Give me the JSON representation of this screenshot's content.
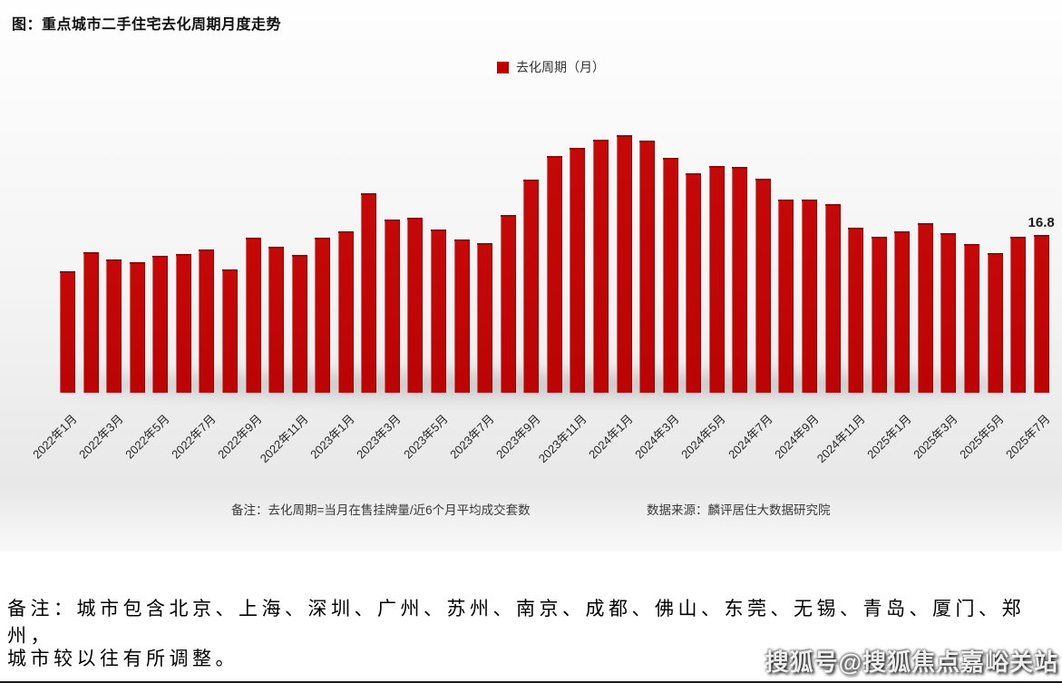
{
  "chart": {
    "title": "图：重点城市二手住宅去化周期月度走势",
    "legend_label": "去化周期（月）",
    "note_definition": "备注：去化周期=当月在售挂牌量/近6个月平均成交套数",
    "note_source": "数据来源：麟评居住大数据研究院",
    "accent_color": "#c00000"
  },
  "chart_data": {
    "type": "bar",
    "title": "重点城市二手住宅去化周期月度走势",
    "series_name": "去化周期（月）",
    "categories": [
      "2022年1月",
      "2022年2月",
      "2022年3月",
      "2022年4月",
      "2022年5月",
      "2022年6月",
      "2022年7月",
      "2022年8月",
      "2022年9月",
      "2022年10月",
      "2022年11月",
      "2022年12月",
      "2023年1月",
      "2023年2月",
      "2023年3月",
      "2023年4月",
      "2023年5月",
      "2023年6月",
      "2023年7月",
      "2023年8月",
      "2023年9月",
      "2023年10月",
      "2023年11月",
      "2023年12月",
      "2024年1月",
      "2024年2月",
      "2024年3月",
      "2024年4月",
      "2024年5月",
      "2024年6月",
      "2024年7月",
      "2024年8月",
      "2024年9月",
      "2024年10月",
      "2024年11月",
      "2024年12月",
      "2025年1月",
      "2025年2月",
      "2025年3月",
      "2025年4月",
      "2025年5月",
      "2025年6月",
      "2025年7月"
    ],
    "values": [
      12.9,
      15.0,
      14.2,
      13.9,
      14.6,
      14.8,
      15.3,
      13.1,
      16.5,
      15.5,
      14.7,
      16.5,
      17.2,
      21.2,
      18.4,
      18.6,
      17.4,
      16.3,
      15.9,
      18.9,
      22.7,
      25.2,
      26.1,
      26.9,
      27.4,
      26.8,
      25.0,
      23.4,
      24.1,
      24.0,
      22.8,
      20.6,
      20.6,
      20.1,
      17.6,
      16.6,
      17.2,
      18.1,
      17.0,
      15.8,
      14.9,
      16.6,
      16.8
    ],
    "x_tick_labels": [
      "2022年1月",
      "2022年3月",
      "2022年5月",
      "2022年7月",
      "2022年9月",
      "2022年11月",
      "2023年1月",
      "2023年3月",
      "2023年5月",
      "2023年7月",
      "2023年9月",
      "2023年11月",
      "2024年1月",
      "2024年3月",
      "2024年5月",
      "2024年7月",
      "2024年9月",
      "2024年11月",
      "2025年1月",
      "2025年3月",
      "2025年5月",
      "2025年7月"
    ],
    "ylim": [
      0,
      28
    ],
    "grid": false,
    "legend_position": "top-center",
    "bar_color": "#c00000",
    "data_label": {
      "index": 42,
      "text": "16.8"
    }
  },
  "bottom_note": {
    "line1": "备注：城市包含北京、上海、深圳、广州、苏州、南京、成都、佛山、东莞、无锡、青岛、厦门、郑州，",
    "line2": "城市较以往有所调整。"
  },
  "watermark": "搜狐号@搜狐焦点嘉峪关站"
}
